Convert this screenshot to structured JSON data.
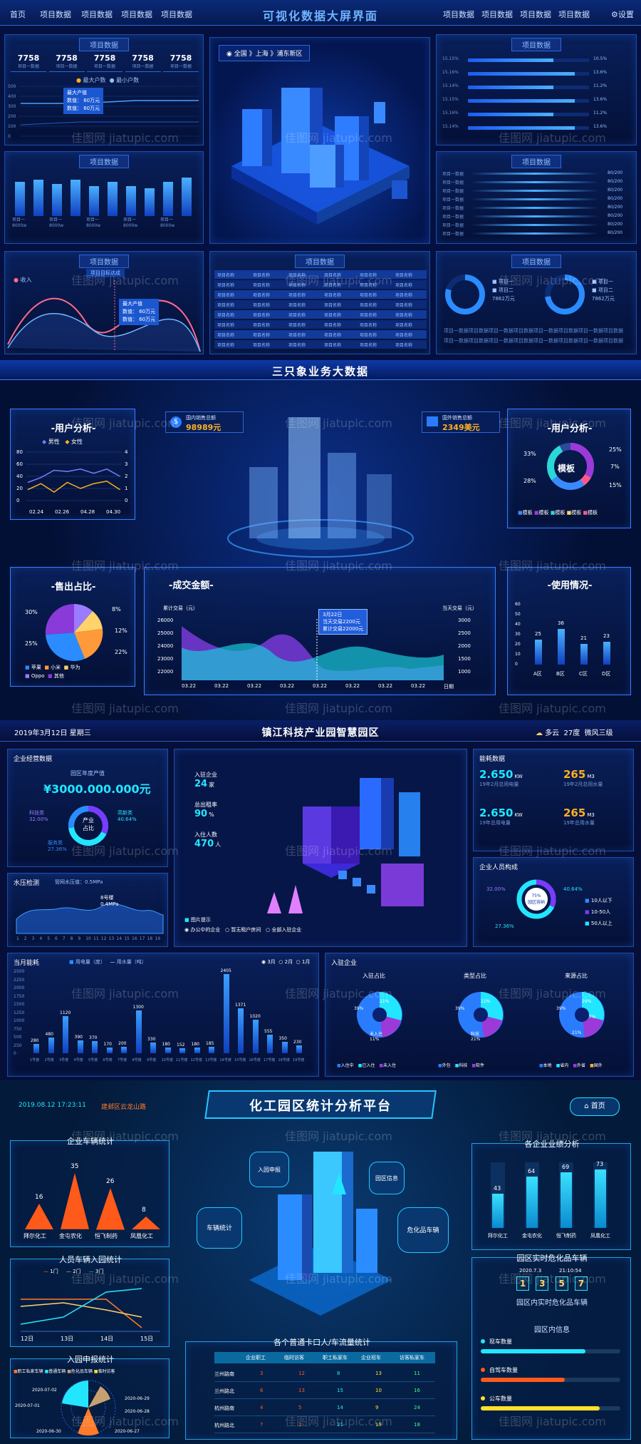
{
  "s1": {
    "nav_left": [
      "首页",
      "项目数据",
      "项目数据",
      "项目数据",
      "项目数据"
    ],
    "title": "可视化数据大屏界面",
    "nav_right": [
      "项目数据",
      "项目数据",
      "项目数据",
      "项目数据"
    ],
    "settings": "设置",
    "panel_title": "项目数据",
    "kpis": [
      "7758",
      "7758",
      "7758",
      "7758",
      "7758"
    ],
    "kpi_label": "项目一数据",
    "legend": [
      "最大户数",
      "最小户数"
    ],
    "line_tooltip": [
      "最大产值",
      "数值： 60万元",
      "数值： 60万元"
    ],
    "y_ticks": [
      "500",
      "400",
      "300",
      "200",
      "100",
      "0"
    ],
    "location": "全国 》上海 》浦东新区",
    "bar_heights": [
      0.8,
      0.85,
      0.75,
      0.85,
      0.7,
      0.8,
      0.7,
      0.65,
      0.8,
      0.9
    ],
    "bar_cap": [
      "项目一",
      "8000w"
    ],
    "hbar_vals": [
      "10.5%",
      "13.6%",
      "11.2%",
      "13.6%",
      "11.2%",
      "13.6%"
    ],
    "hbar_left": [
      "15.15%",
      "15.16%",
      "15.14%",
      "15.15%",
      "15.16%",
      "15.14%"
    ],
    "stream_label": "项目一数据",
    "stream_val": "80/200",
    "wave_legend": "收入",
    "wave_chip": "项目目标达成",
    "wave_tooltip": [
      "最大产值",
      "数值： 60万元",
      "数值： 60万元"
    ],
    "table_cell": "项目名称",
    "donut_legend": [
      "项目一",
      "项目二",
      "7862万元"
    ],
    "donut_caption": "项目一数据项目数据项目一数据项目数据项目一数据项目数据项目一数据项目数据",
    "watermark": "佳图网 jiatupic.com"
  },
  "s2": {
    "title": "三只象业务大数据",
    "dom_label": "国内销售总额",
    "dom_value": "98989元",
    "for_label": "国外销售总额",
    "for_value": "2349美元",
    "user_title": "-用户分析-",
    "legend": [
      "男性",
      "女性"
    ],
    "x_ticks": [
      "02.24",
      "02.26",
      "04.28",
      "04.30"
    ],
    "yl": [
      "80",
      "60",
      "40",
      "20",
      "0"
    ],
    "yr": [
      "4",
      "3",
      "2",
      "1",
      "0"
    ],
    "male": [
      30,
      38,
      50,
      48,
      52,
      45,
      52,
      40
    ],
    "female": [
      18,
      28,
      14,
      30,
      20,
      28,
      32,
      18
    ],
    "pie_title": "-售出占比-",
    "pie_pcts": [
      "30%",
      "8%",
      "12%",
      "22%",
      "25%"
    ],
    "pie_legend": [
      "苹果",
      "小米",
      "华为",
      "Oppo",
      "其他"
    ],
    "deal_title": "-成交金额-",
    "deal_left": "累计交易（元）",
    "deal_right": "当天交易（元）",
    "deal_yl": [
      "26000",
      "25000",
      "24000",
      "23000",
      "22000"
    ],
    "deal_yr": [
      "3000",
      "2500",
      "2000",
      "1500",
      "1000"
    ],
    "deal_x": [
      "03.22",
      "03.22",
      "03.22",
      "03.22",
      "03.22",
      "03.22",
      "03.22",
      "03.22",
      "日期"
    ],
    "deal_tip": [
      "3月22日",
      "当天交易2200元",
      "累计交易22000元"
    ],
    "user2_title": "-用户分析-",
    "ring_center": "模板",
    "ring_pcts": [
      "33%",
      "25%",
      "7%",
      "15%",
      "28%"
    ],
    "ring_legend": [
      "模板",
      "模板",
      "模板",
      "模板",
      "模板"
    ],
    "usage_title": "-使用情况-",
    "usage_y": [
      "60",
      "50",
      "40",
      "30",
      "20",
      "10",
      "0"
    ],
    "usage_bars": [
      {
        "label": "A区",
        "value": 25
      },
      {
        "label": "B区",
        "value": 36
      },
      {
        "label": "C区",
        "value": 21
      },
      {
        "label": "D区",
        "value": 23
      }
    ]
  },
  "s3": {
    "date": "2019年3月12日  星期三",
    "title": "镇江科技产业园智慧园区",
    "weather": [
      "多云",
      "27度",
      "微风三级"
    ],
    "econ_title": "企业经营数据",
    "output_label": "园区年度产值",
    "output_value": "¥3000.000.000元",
    "donut_center": "产业\n占比",
    "donut_labels": [
      "科技类\n32.00%",
      "高新类\n40.64%",
      "服务类\n27.36%"
    ],
    "center_stats": [
      {
        "label": "入驻企业",
        "value": "24",
        "unit": "家"
      },
      {
        "label": "总出租率",
        "value": "90",
        "unit": "%"
      },
      {
        "label": "入住人数",
        "value": "470",
        "unit": "人"
      }
    ],
    "center_legend": [
      "图片提示",
      "办公中的企业",
      "暂无租户房间",
      "全部入驻企业"
    ],
    "energy_title": "能耗数据",
    "energy": [
      {
        "value": "2.650",
        "unit": "KW",
        "label": "19年2月总用电量"
      },
      {
        "value": "265",
        "unit": "M3",
        "label": "19年2月总用水量"
      },
      {
        "value": "2.650",
        "unit": "KW",
        "label": "19年总用电量"
      },
      {
        "value": "265",
        "unit": "M3",
        "label": "19年总用水量"
      }
    ],
    "water_title": "水压检测",
    "water_sub": "管网水压值：0.5MPa",
    "water_tip": [
      "8号楼",
      "0.4MPa"
    ],
    "water_x": [
      "1",
      "2",
      "3",
      "4",
      "5",
      "6",
      "7",
      "8",
      "9",
      "10",
      "11",
      "12",
      "13",
      "14",
      "15",
      "16",
      "17",
      "18",
      "19"
    ],
    "people_title": "企业人员构成",
    "people_labels": [
      "32.00%",
      "40.64%",
      "27.36%"
    ],
    "people_center": "75%\n园区容纳",
    "people_legend": [
      "10人以下",
      "10-50人",
      "50人以上"
    ],
    "monthly_title": "当月能耗",
    "monthly_legend": [
      "用电量（度）",
      "用水量（吨）"
    ],
    "monthly_tabs": [
      "3月",
      "2月",
      "1月"
    ],
    "monthly_y": [
      "2500",
      "2250",
      "2000",
      "1750",
      "1500",
      "1250",
      "1000",
      "750",
      "500",
      "250",
      "0"
    ],
    "monthly_vals": [
      280,
      480,
      1120,
      390,
      370,
      170,
      200,
      1300,
      330,
      180,
      152,
      180,
      185,
      2405,
      1371,
      1020,
      555,
      350,
      230
    ],
    "monthly_x": [
      "1号楼",
      "2号楼",
      "3号楼",
      "4号楼",
      "5号楼",
      "6号楼",
      "7号楼",
      "8号楼",
      "9号楼",
      "10号楼",
      "11号楼",
      "12号楼",
      "13号楼",
      "14号楼",
      "15号楼",
      "16号楼",
      "17号楼",
      "18号楼",
      "19号楼"
    ],
    "ent_title": "入驻企业",
    "ent_pies": [
      {
        "title": "入驻占比",
        "legend": [
          "入住中",
          "已入住",
          "未入住"
        ],
        "labels": [
          "39%",
          "21%",
          "未入住\n11%"
        ]
      },
      {
        "title": "类型占比",
        "legend": [
          "外包",
          "科技",
          "软件"
        ],
        "labels": [
          "39%",
          "11%",
          "科技\n21%"
        ]
      },
      {
        "title": "来源占比",
        "legend": [
          "本地",
          "省内",
          "外省",
          "国外"
        ],
        "labels": [
          "39%",
          "29%",
          "21%",
          "7%"
        ]
      }
    ]
  },
  "s4": {
    "datetime": "2019.08.12  17:23:11",
    "road": "建邺区云龙山路",
    "title": "化工园区统计分析平台",
    "home": "首页",
    "vehicle_title": "企业车辆统计",
    "vehicle": [
      {
        "label": "拜尔化工",
        "value": 16
      },
      {
        "label": "金屯农化",
        "value": 35
      },
      {
        "label": "恒飞制药",
        "value": 26
      },
      {
        "label": "凤凰化工",
        "value": 8
      }
    ],
    "people_title": "人员车辆入园统计",
    "people_legend": [
      "1门",
      "2门",
      "3门"
    ],
    "people_x": [
      "12日",
      "13日",
      "14日",
      "15日"
    ],
    "apply_title": "入园申报统计",
    "apply_legend": [
      "职工私家车辆",
      "普通车辆",
      "危化品车辆",
      "临时访客"
    ],
    "apply_dates": [
      "2020-07-02",
      "2020-07-01",
      "2020-06-30",
      "2020-06-29",
      "2020-06-28",
      "2020-06-27"
    ],
    "hexes": [
      "入园申报",
      "园区信息",
      "车辆统计",
      "危化品车辆"
    ],
    "table_title": "各个普通卡口人/车流量统计",
    "table_head": [
      "企业职工",
      "临时访客",
      "职工私家车",
      "企业班车",
      "访客私家车"
    ],
    "table_rows": [
      [
        "兰州路南",
        "3",
        "12",
        "8",
        "13",
        "11"
      ],
      [
        "兰州路北",
        "6",
        "13",
        "15",
        "10",
        "16"
      ],
      [
        "杭州路南",
        "4",
        "5",
        "14",
        "9",
        "24"
      ],
      [
        "杭州路北",
        "7",
        "1",
        "21",
        "19",
        "18"
      ]
    ],
    "score_title": "各企业业绩分析",
    "scores": [
      {
        "label": "拜尔化工",
        "value": 43
      },
      {
        "label": "金屯农化",
        "value": 64
      },
      {
        "label": "恒飞制药",
        "value": 69
      },
      {
        "label": "凤凰化工",
        "value": 73
      }
    ],
    "realtime_title": "园区实时危化品车辆",
    "rt_date": "2020.7.3",
    "rt_time": "21:10:54",
    "rt_digits": [
      "1",
      "3",
      "5",
      "7"
    ],
    "rt_sub": "园区内实时危化品车辆",
    "info_title": "园区内信息",
    "info_items": [
      {
        "label": "现车数量",
        "fill": 0.75
      },
      {
        "label": "自驾车数量",
        "fill": 0.6
      },
      {
        "label": "公车数量",
        "fill": 0.85
      }
    ]
  }
}
